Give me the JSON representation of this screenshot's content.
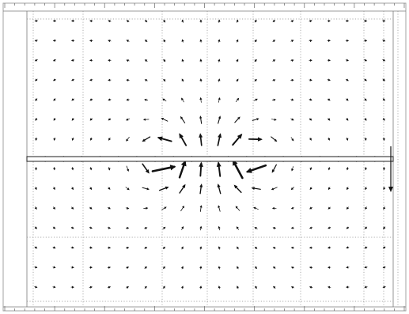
{
  "figure": {
    "type": "vector-field",
    "description_visible_text": "",
    "colors": {
      "arrows": "#111111",
      "frame": "#9a9a9a",
      "grid": "#8c8c8c",
      "sheet": "#333333"
    },
    "field_model": {
      "grid_columns": 20,
      "grid_rows": 15,
      "sheet_row_index": 7
    }
  }
}
